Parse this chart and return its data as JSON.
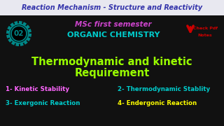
{
  "bg_color": "#000000",
  "top_bar_color": "#e8e8f0",
  "top_bar_text": "Reaction Mechanism - Structure and Reactivity",
  "top_bar_text_color": "#3333aa",
  "top_bar_height": 22,
  "msc_text": "MSc first semester",
  "msc_text_color": "#cc44cc",
  "organic_text": "ORGANIC CHEMISTRY",
  "organic_text_color": "#00cccc",
  "badge_number": "02",
  "badge_outer_color": "#008888",
  "badge_inner_color": "#000000",
  "badge_text_color": "#008888",
  "main_title_line1": "Thermodynamic and kinetic",
  "main_title_line2": "Requirement",
  "main_title_color": "#99ff00",
  "arrow_color": "#cc0000",
  "check_pdf_text_color": "#cc0000",
  "mid_bg_color": "#111111",
  "items": [
    {
      "label": "1- Kinetic Stability",
      "color": "#ff66ff"
    },
    {
      "label": "2- Thermodynamic Stablity",
      "color": "#00cccc"
    },
    {
      "label": "3- Exergonic Reaction",
      "color": "#00cccc"
    },
    {
      "label": "4- Endergonic Reaction",
      "color": "#ffff00"
    }
  ]
}
